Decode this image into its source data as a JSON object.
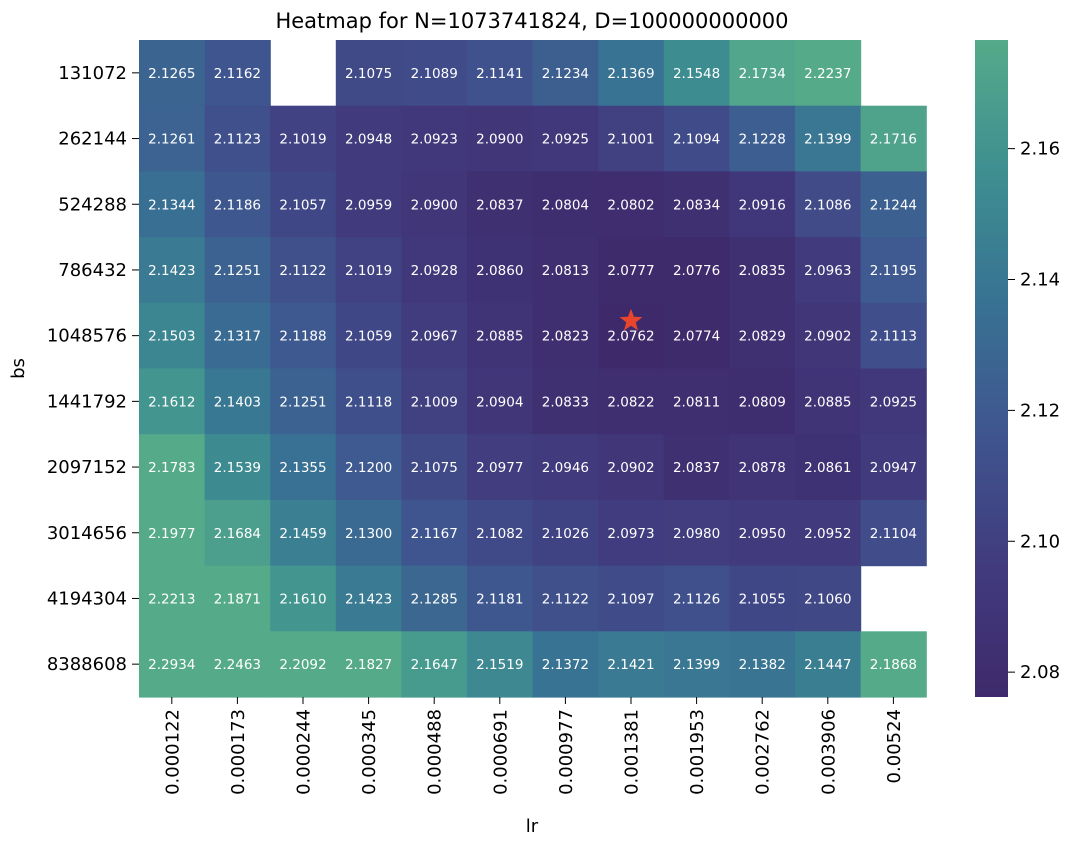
{
  "chart_data": {
    "type": "heatmap",
    "title": "Heatmap for N=1073741824, D=100000000000",
    "xlabel": "lr",
    "ylabel": "bs",
    "x_categories": [
      "0.000122",
      "0.000173",
      "0.000244",
      "0.000345",
      "0.000488",
      "0.000691",
      "0.000977",
      "0.001381",
      "0.001953",
      "0.002762",
      "0.003906",
      "0.00524"
    ],
    "y_categories": [
      "131072",
      "262144",
      "524288",
      "786432",
      "1048576",
      "1441792",
      "2097152",
      "3014656",
      "4194304",
      "8388608"
    ],
    "values": [
      [
        2.1265,
        2.1162,
        null,
        2.1075,
        2.1089,
        2.1141,
        2.1234,
        2.1369,
        2.1548,
        2.1734,
        2.2237,
        null
      ],
      [
        2.1261,
        2.1123,
        2.1019,
        2.0948,
        2.0923,
        2.09,
        2.0925,
        2.1001,
        2.1094,
        2.1228,
        2.1399,
        2.1716
      ],
      [
        2.1344,
        2.1186,
        2.1057,
        2.0959,
        2.09,
        2.0837,
        2.0804,
        2.0802,
        2.0834,
        2.0916,
        2.1086,
        2.1244
      ],
      [
        2.1423,
        2.1251,
        2.1122,
        2.1019,
        2.0928,
        2.086,
        2.0813,
        2.0777,
        2.0776,
        2.0835,
        2.0963,
        2.1195
      ],
      [
        2.1503,
        2.1317,
        2.1188,
        2.1059,
        2.0967,
        2.0885,
        2.0823,
        2.0762,
        2.0774,
        2.0829,
        2.0902,
        2.1113
      ],
      [
        2.1612,
        2.1403,
        2.1251,
        2.1118,
        2.1009,
        2.0904,
        2.0833,
        2.0822,
        2.0811,
        2.0809,
        2.0885,
        2.0925
      ],
      [
        2.1783,
        2.1539,
        2.1355,
        2.12,
        2.1075,
        2.0977,
        2.0946,
        2.0902,
        2.0837,
        2.0878,
        2.0861,
        2.0947
      ],
      [
        2.1977,
        2.1684,
        2.1459,
        2.13,
        2.1167,
        2.1082,
        2.1026,
        2.0973,
        2.098,
        2.095,
        2.0952,
        2.1104
      ],
      [
        2.2213,
        2.1871,
        2.161,
        2.1423,
        2.1285,
        2.1181,
        2.1122,
        2.1097,
        2.1126,
        2.1055,
        2.106,
        null
      ],
      [
        2.2934,
        2.2463,
        2.2092,
        2.1827,
        2.1647,
        2.1519,
        2.1372,
        2.1421,
        2.1399,
        2.1382,
        2.1447,
        2.1868
      ]
    ],
    "colorbar": {
      "range": [
        2.0762,
        2.1766
      ],
      "ticks": [
        "2.08",
        "2.10",
        "2.12",
        "2.14",
        "2.16"
      ],
      "tick_values": [
        2.08,
        2.1,
        2.12,
        2.14,
        2.16
      ],
      "colormap_stops": [
        "#3e2a6b",
        "#413b7e",
        "#3f558f",
        "#387293",
        "#3e8f90",
        "#55aa8a"
      ]
    },
    "marker": {
      "symbol": "star",
      "color": "#e8452c",
      "row": 4,
      "col": 7
    },
    "grid": false
  }
}
